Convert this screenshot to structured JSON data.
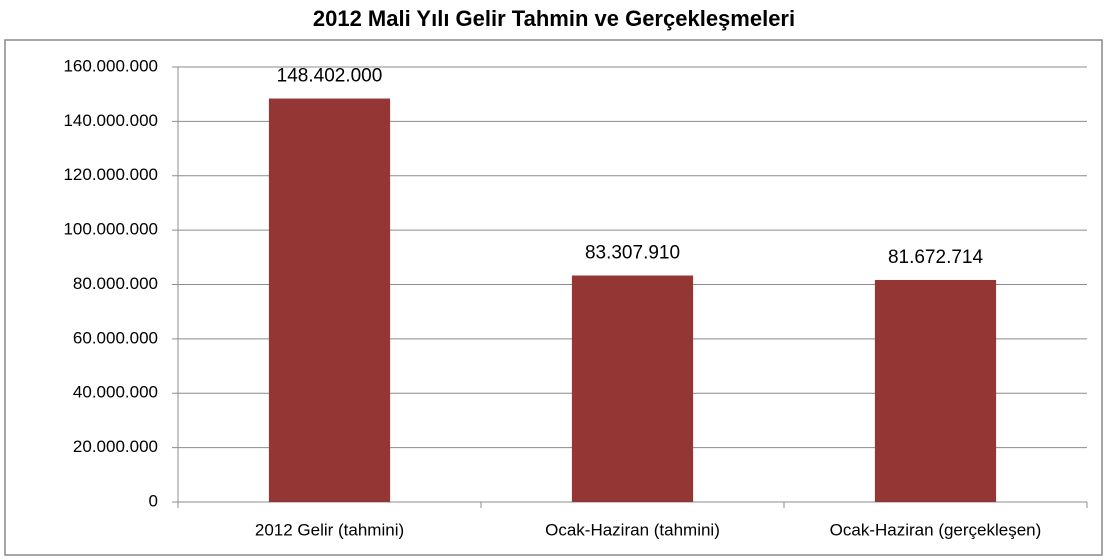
{
  "chart_data": {
    "type": "bar",
    "title": "2012 Mali Yılı Gelir Tahmin ve Gerçekleşmeleri",
    "categories": [
      "2012 Gelir (tahmini)",
      "Ocak-Haziran (tahmini)",
      "Ocak-Haziran (gerçekleşen)"
    ],
    "values": [
      148402000,
      83307910,
      81672714
    ],
    "value_labels": [
      "148.402.000",
      "83.307.910",
      "81.672.714"
    ],
    "color": "#943634",
    "ylim": [
      0,
      160000000
    ],
    "yticks": [
      0,
      {
        "value": 20000000,
        "label": "20.000.000"
      },
      {
        "value": 40000000,
        "label": "40.000.000"
      },
      {
        "value": 60000000,
        "label": "60.000.000"
      },
      {
        "value": 80000000,
        "label": "80.000.000"
      },
      {
        "value": 100000000,
        "label": "100.000.000"
      },
      {
        "value": 120000000,
        "label": "120.000.000"
      },
      {
        "value": 140000000,
        "label": "140.000.000"
      },
      {
        "value": 160000000,
        "label": "160.000.000"
      }
    ],
    "grid": true
  }
}
